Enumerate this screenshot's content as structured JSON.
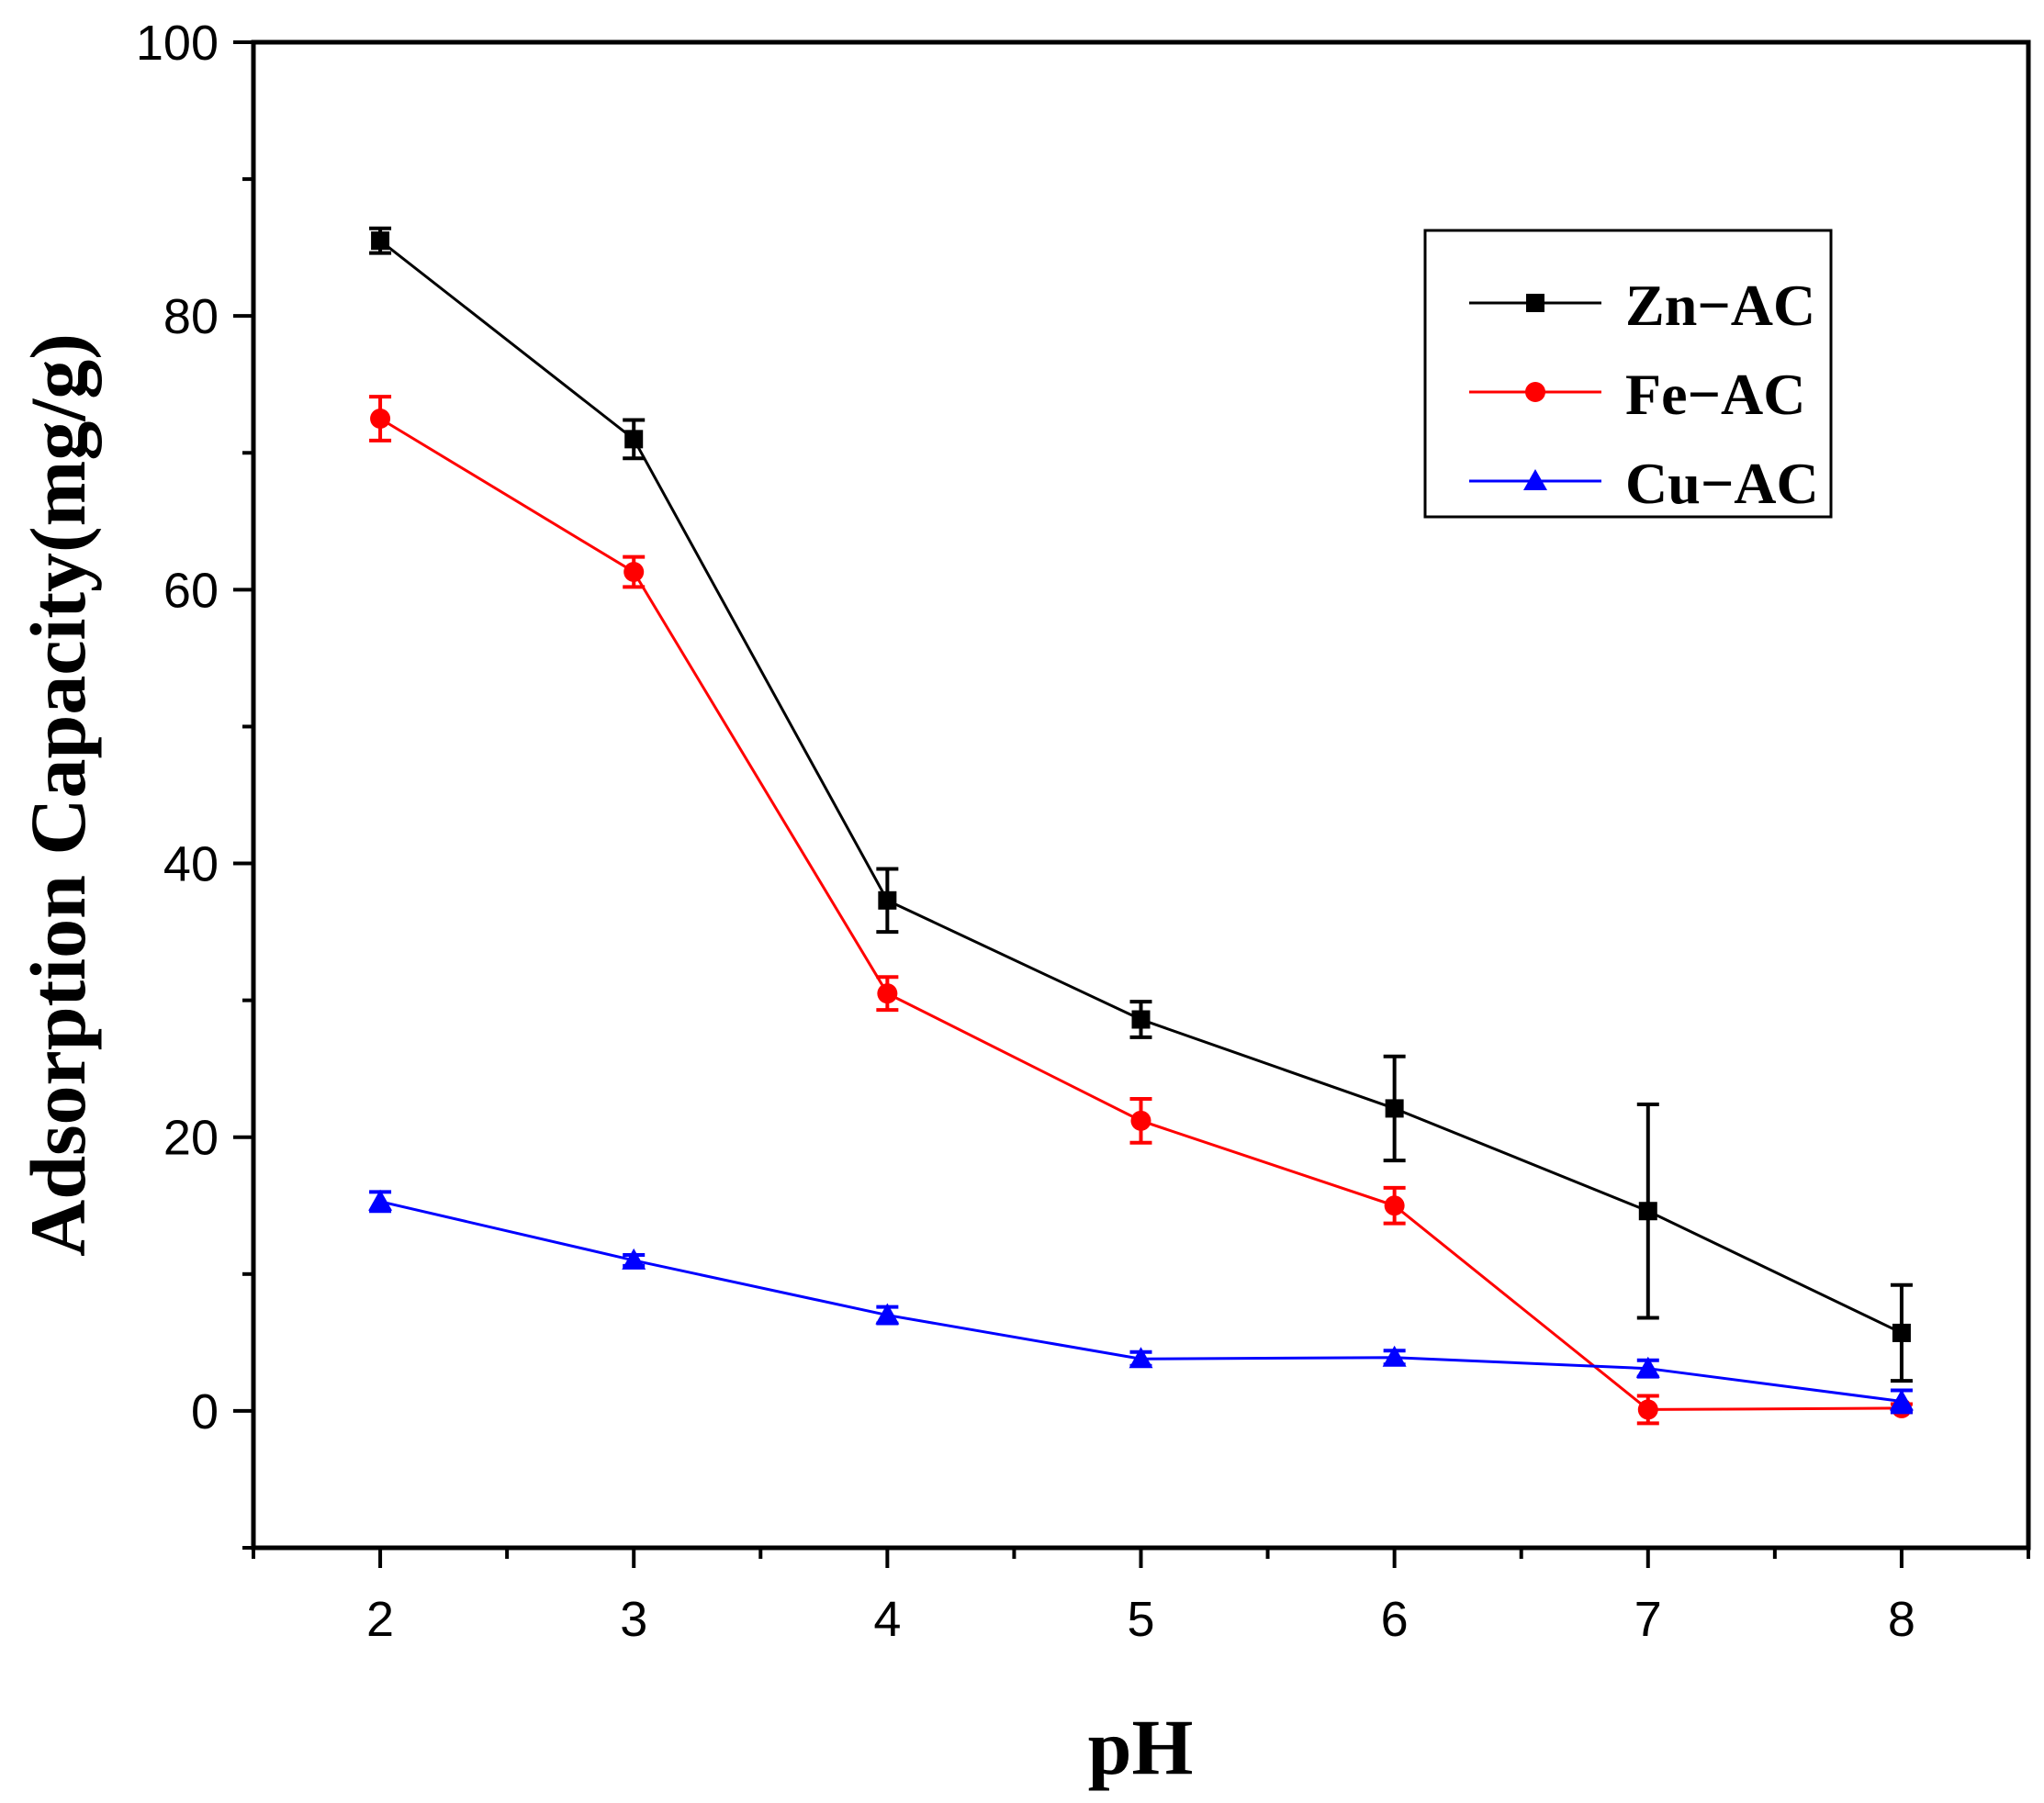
{
  "chart_data": {
    "type": "line",
    "title": "",
    "xlabel": "pH",
    "ylabel": "Adsorption Capacity(mg/g)",
    "xlim": [
      1.5,
      8.5
    ],
    "ylim": [
      -10,
      100
    ],
    "x": [
      2,
      3,
      4,
      5,
      6,
      7,
      8
    ],
    "xticks": [
      "2",
      "3",
      "4",
      "5",
      "6",
      "7",
      "8"
    ],
    "yticks": [
      "0",
      "20",
      "40",
      "60",
      "80",
      "100"
    ],
    "grid": false,
    "legend_position": "top-right",
    "series": [
      {
        "name": "Zn−AC",
        "color": "#000000",
        "marker": "square",
        "values": [
          85.5,
          71.0,
          37.3,
          28.6,
          22.1,
          14.6,
          5.7
        ],
        "errors": [
          0.9,
          1.4,
          2.3,
          1.3,
          3.8,
          7.8,
          3.5
        ]
      },
      {
        "name": "Fe−AC",
        "color": "#ff0000",
        "marker": "circle",
        "values": [
          72.5,
          61.3,
          30.5,
          21.2,
          15.0,
          0.1,
          0.2
        ],
        "errors": [
          1.6,
          1.1,
          1.2,
          1.6,
          1.3,
          1.0,
          0.3
        ]
      },
      {
        "name": "Cu−AC",
        "color": "#0000ff",
        "marker": "triangle",
        "values": [
          15.3,
          11.0,
          7.0,
          3.8,
          3.9,
          3.1,
          0.7
        ],
        "errors": [
          0.7,
          0.4,
          0.6,
          0.5,
          0.5,
          0.6,
          0.8
        ]
      }
    ]
  }
}
